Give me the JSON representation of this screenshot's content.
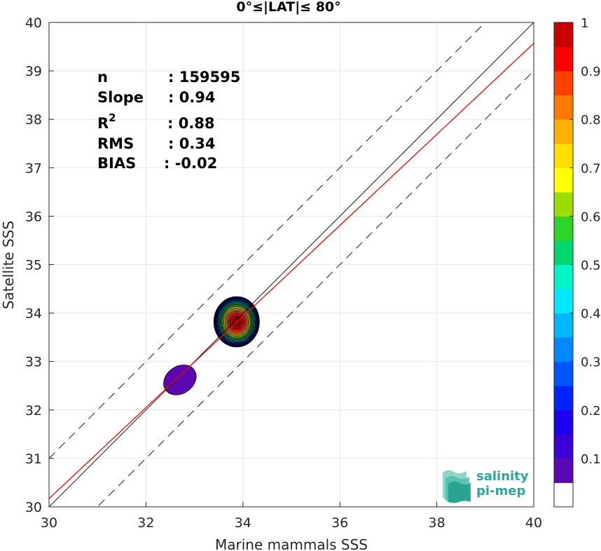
{
  "chart_data": {
    "type": "heatmap",
    "title": "0°≤|LAT|≤ 80°",
    "xlabel": "Marine mammals SSS",
    "ylabel": "Satellite SSS",
    "xlim": [
      30,
      40
    ],
    "ylim": [
      30,
      40
    ],
    "xticks": [
      "30",
      "32",
      "34",
      "36",
      "38",
      "40"
    ],
    "yticks": [
      "30",
      "31",
      "32",
      "33",
      "34",
      "35",
      "36",
      "37",
      "38",
      "39",
      "40"
    ],
    "grid": true,
    "stats": [
      {
        "label": "n",
        "value": ": 159595"
      },
      {
        "label": "Slope",
        "value": ": 0.94"
      },
      {
        "label": "R",
        "label_sup": "2",
        "value": ": 0.88"
      },
      {
        "label": "RMS",
        "value": ": 0.34"
      },
      {
        "label": "BIAS",
        "value": ": -0.02"
      }
    ],
    "lines": [
      {
        "name": "identity",
        "color": "#000000",
        "style": "solid",
        "points": [
          [
            30,
            30
          ],
          [
            40,
            40
          ]
        ]
      },
      {
        "name": "identity-plus-1",
        "color": "#000000",
        "style": "dashed",
        "points": [
          [
            30,
            31
          ],
          [
            40,
            41
          ]
        ]
      },
      {
        "name": "identity-minus-1",
        "color": "#000000",
        "style": "dashed",
        "points": [
          [
            30,
            29
          ],
          [
            40,
            39
          ]
        ]
      },
      {
        "name": "regression",
        "color": "#ff0000",
        "style": "solid",
        "points": [
          [
            30,
            30.17
          ],
          [
            40,
            39.57
          ]
        ]
      }
    ],
    "density_clusters": [
      {
        "center": [
          33.87,
          33.82
        ],
        "sx": 0.47,
        "sy": 0.52,
        "peak": 1.0
      },
      {
        "center": [
          32.7,
          32.62
        ],
        "sx": 0.36,
        "sy": 0.28,
        "peak": 0.05,
        "angle_deg": 35
      }
    ],
    "colorbar": {
      "ticks": [
        "0.1",
        "0.2",
        "0.3",
        "0.4",
        "0.5",
        "0.6",
        "0.7",
        "0.8",
        "0.9",
        "1"
      ],
      "range": [
        0,
        1
      ],
      "levels": 20,
      "colors": [
        "#ffffff",
        "#5b08b2",
        "#3a00d6",
        "#1e00f0",
        "#0022ff",
        "#0055ff",
        "#0088ff",
        "#00b5ff",
        "#00e8ff",
        "#00f5c6",
        "#00d66e",
        "#2ed42a",
        "#9cdd00",
        "#ffff00",
        "#ffdf00",
        "#ffb000",
        "#ff7a00",
        "#ff4000",
        "#ff0000",
        "#c80000",
        "#850000"
      ]
    },
    "logo": {
      "line1": "salinity",
      "line2": "pi-mep"
    }
  }
}
